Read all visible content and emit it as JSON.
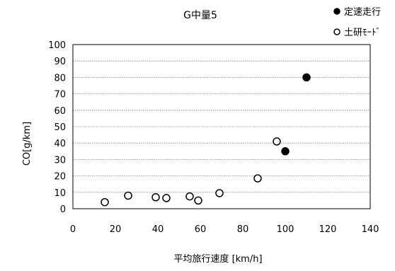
{
  "chart_data": {
    "type": "scatter",
    "title": "G中量5",
    "xlabel": "平均旅行速度 [km/h]",
    "ylabel": "CO[g/km]",
    "xlim": [
      0,
      140
    ],
    "ylim": [
      0,
      100
    ],
    "x_ticks": [
      "0",
      "20",
      "40",
      "60",
      "80",
      "100",
      "120",
      "140"
    ],
    "y_ticks": [
      "0",
      "10",
      "20",
      "30",
      "40",
      "50",
      "60",
      "70",
      "80",
      "90",
      "100"
    ],
    "grid": "horizontal",
    "legend_position": "top-right",
    "series": [
      {
        "name": "定速走行",
        "marker": "filled-circle",
        "color": "#000000",
        "points": [
          {
            "x": 100,
            "y": 35
          },
          {
            "x": 110,
            "y": 80
          }
        ]
      },
      {
        "name": "土研ﾓｰﾄﾞ",
        "marker": "open-circle",
        "color": "#000000",
        "points": [
          {
            "x": 15,
            "y": 4
          },
          {
            "x": 26,
            "y": 8
          },
          {
            "x": 39,
            "y": 7
          },
          {
            "x": 44,
            "y": 6.5
          },
          {
            "x": 55,
            "y": 7.5
          },
          {
            "x": 59,
            "y": 5
          },
          {
            "x": 69,
            "y": 9.5
          },
          {
            "x": 87,
            "y": 18.5
          },
          {
            "x": 96,
            "y": 41
          }
        ]
      }
    ]
  }
}
